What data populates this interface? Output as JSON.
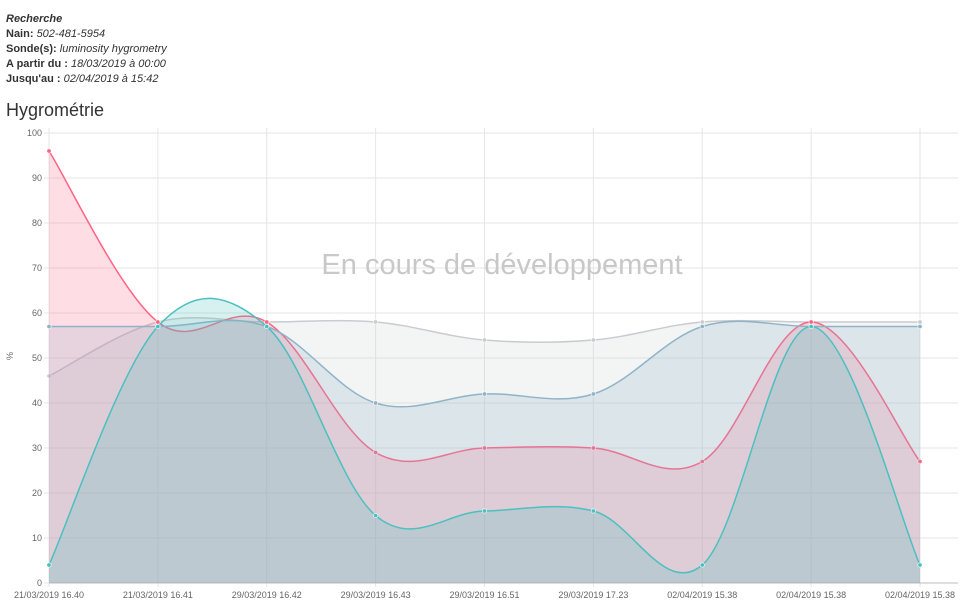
{
  "info": {
    "heading": "Recherche",
    "nain_label": "Nain:",
    "nain_value": "502-481-5954",
    "sondes_label": "Sonde(s):",
    "sondes_value": "luminosity hygrometry",
    "from_label": "A partir du :",
    "from_value": "18/03/2019 à 00:00",
    "to_label": "Jusqu'au :",
    "to_value": "02/04/2019 à 15:42"
  },
  "section_title": "Hygrométrie",
  "watermark": "En cours de développement",
  "chart_data": {
    "type": "area",
    "categories": [
      "21/03/2019 16.40",
      "21/03/2019 16.41",
      "29/03/2019 16.42",
      "29/03/2019 16.43",
      "29/03/2019 16.51",
      "29/03/2019 17.23",
      "02/04/2019 15.38",
      "02/04/2019 15.38",
      "02/04/2019 15.38"
    ],
    "ylabel": "%",
    "ylim": [
      0,
      100
    ],
    "yticks": [
      0,
      10,
      20,
      30,
      40,
      50,
      60,
      70,
      80,
      90,
      100
    ],
    "grid": true,
    "series": [
      {
        "values": [
          46,
          58,
          58,
          58,
          54,
          54,
          58,
          58,
          58
        ],
        "color": "#c9cbcf"
      },
      {
        "values": [
          96,
          58,
          58,
          29,
          30,
          30,
          27,
          58,
          27
        ],
        "color": "#ff6384"
      },
      {
        "values": [
          57,
          57,
          57,
          40,
          42,
          42,
          57,
          57,
          57
        ],
        "color": "#8fb3c8"
      },
      {
        "values": [
          4,
          57,
          57,
          15,
          16,
          16,
          4,
          57,
          4
        ],
        "color": "#4bc0c0"
      }
    ]
  }
}
